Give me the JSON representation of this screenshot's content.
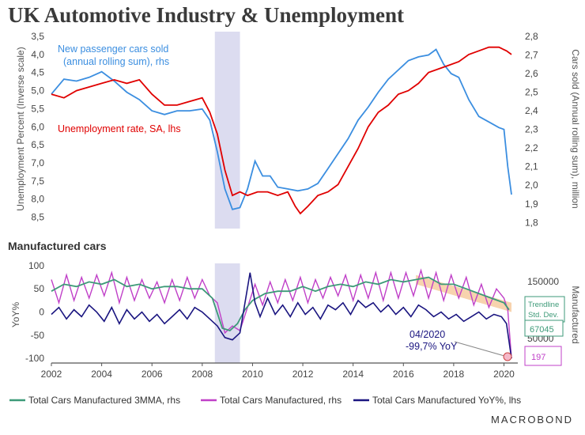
{
  "title": "UK Automotive Industry & Unemployment",
  "footer_brand": "MACROBOND",
  "colors": {
    "unemployment": "#e00000",
    "cars_sold": "#3b8ee0",
    "mma3": "#3d9a78",
    "manufactured": "#c040c8",
    "yoy": "#1a1580",
    "recession": "#dcdcf0",
    "trend_band": "#f5c89a"
  },
  "chart_data": [
    {
      "type": "line",
      "subtitle": "",
      "annotations": [
        "New passenger cars sold",
        "(annual rolling sum), rhs",
        "Unemployment rate, SA, lhs"
      ],
      "ylabel": "Unemployment Percent (Inverse scale)",
      "y2label": "Cars sold (Annual rolling sum), million",
      "ylim": [
        8.75,
        3.5
      ],
      "y2lim": [
        1.78,
        2.8
      ],
      "yticks": [
        "3,5",
        "4,0",
        "4,5",
        "5,0",
        "5,5",
        "6,0",
        "6,5",
        "7,0",
        "7,5",
        "8,0",
        "8,5"
      ],
      "y2ticks": [
        "1,8",
        "1,9",
        "2,0",
        "2,1",
        "2,2",
        "2,3",
        "2,4",
        "2,5",
        "2,6",
        "2,7",
        "2,8"
      ],
      "recession": [
        2008.5,
        2009.5
      ],
      "series": [
        {
          "name": "Unemployment rate, SA, lhs",
          "axis": "left",
          "x": [
            2002.0,
            2002.5,
            2003.0,
            2003.5,
            2004.0,
            2004.5,
            2005.0,
            2005.5,
            2006.0,
            2006.5,
            2007.0,
            2007.5,
            2008.0,
            2008.3,
            2008.6,
            2008.9,
            2009.2,
            2009.5,
            2009.8,
            2010.2,
            2010.6,
            2011.0,
            2011.4,
            2011.7,
            2011.9,
            2012.2,
            2012.6,
            2013.0,
            2013.4,
            2013.8,
            2014.2,
            2014.6,
            2015.0,
            2015.4,
            2015.8,
            2016.2,
            2016.6,
            2017.0,
            2017.4,
            2017.8,
            2018.2,
            2018.6,
            2019.0,
            2019.4,
            2019.8,
            2020.1,
            2020.3
          ],
          "y": [
            5.1,
            5.2,
            5.0,
            4.9,
            4.8,
            4.7,
            4.8,
            4.7,
            5.1,
            5.4,
            5.4,
            5.3,
            5.2,
            5.6,
            6.2,
            7.2,
            7.9,
            7.8,
            7.9,
            7.8,
            7.8,
            7.9,
            7.8,
            8.2,
            8.4,
            8.2,
            7.9,
            7.8,
            7.6,
            7.1,
            6.6,
            6.0,
            5.6,
            5.4,
            5.1,
            5.0,
            4.8,
            4.5,
            4.4,
            4.3,
            4.2,
            4.0,
            3.9,
            3.8,
            3.8,
            3.9,
            4.0
          ]
        },
        {
          "name": "New passenger cars sold (annual rolling sum), rhs",
          "axis": "right",
          "x": [
            2002.0,
            2002.5,
            2003.0,
            2003.5,
            2004.0,
            2004.5,
            2005.0,
            2005.5,
            2006.0,
            2006.5,
            2007.0,
            2007.5,
            2008.0,
            2008.3,
            2008.6,
            2008.9,
            2009.2,
            2009.5,
            2009.8,
            2010.1,
            2010.4,
            2010.7,
            2011.0,
            2011.4,
            2011.8,
            2012.2,
            2012.6,
            2013.0,
            2013.4,
            2013.8,
            2014.2,
            2014.6,
            2015.0,
            2015.4,
            2015.8,
            2016.2,
            2016.6,
            2017.0,
            2017.3,
            2017.6,
            2017.9,
            2018.2,
            2018.6,
            2019.0,
            2019.4,
            2019.8,
            2020.0,
            2020.15,
            2020.3
          ],
          "y": [
            2.49,
            2.57,
            2.56,
            2.58,
            2.61,
            2.56,
            2.5,
            2.46,
            2.4,
            2.38,
            2.4,
            2.4,
            2.41,
            2.35,
            2.18,
            1.98,
            1.87,
            1.88,
            1.98,
            2.13,
            2.05,
            2.05,
            1.99,
            1.98,
            1.97,
            1.98,
            2.01,
            2.09,
            2.17,
            2.25,
            2.35,
            2.42,
            2.5,
            2.57,
            2.62,
            2.67,
            2.69,
            2.7,
            2.73,
            2.65,
            2.6,
            2.58,
            2.46,
            2.37,
            2.34,
            2.31,
            2.3,
            2.1,
            1.95
          ]
        }
      ]
    },
    {
      "type": "line",
      "title": "Manufactured cars",
      "ylabel": "YoY%",
      "y2label": "Manufactured",
      "xticks": [
        "2002",
        "2004",
        "2006",
        "2008",
        "2010",
        "2012",
        "2014",
        "2016",
        "2018",
        "2020"
      ],
      "ylim": [
        -110,
        105
      ],
      "yticks": [
        "100",
        "50",
        "0",
        "-50",
        "-100"
      ],
      "y2ticks": [
        "150000",
        "100000",
        "50000"
      ],
      "recession": [
        2008.5,
        2009.5
      ],
      "annotations": [
        "04/2020",
        "-99,7% YoY"
      ],
      "value_labels": [
        "Trendline",
        "Std. Dev.",
        "67045",
        "197"
      ],
      "series": [
        {
          "name": "Total Cars Manufactured 3MMA, rhs",
          "x": [
            2002.0,
            2002.5,
            2003.0,
            2003.5,
            2004.0,
            2004.5,
            2005.0,
            2005.5,
            2006.0,
            2006.5,
            2007.0,
            2007.5,
            2008.0,
            2008.4,
            2008.8,
            2009.1,
            2009.4,
            2009.7,
            2010.0,
            2010.5,
            2011.0,
            2011.5,
            2012.0,
            2012.5,
            2013.0,
            2013.5,
            2014.0,
            2014.5,
            2015.0,
            2015.5,
            2016.0,
            2016.5,
            2017.0,
            2017.5,
            2018.0,
            2018.5,
            2019.0,
            2019.5,
            2020.0,
            2020.2
          ],
          "y": [
            45,
            60,
            55,
            65,
            60,
            70,
            55,
            60,
            50,
            55,
            55,
            50,
            50,
            30,
            -35,
            -40,
            -25,
            5,
            25,
            40,
            45,
            45,
            55,
            45,
            55,
            60,
            55,
            65,
            60,
            70,
            65,
            70,
            75,
            60,
            60,
            50,
            40,
            30,
            20,
            5
          ]
        },
        {
          "name": "Total Cars Manufactured, rhs",
          "x": [
            2002.0,
            2002.3,
            2002.6,
            2002.9,
            2003.2,
            2003.5,
            2003.8,
            2004.1,
            2004.4,
            2004.7,
            2005.0,
            2005.3,
            2005.6,
            2005.9,
            2006.2,
            2006.5,
            2006.8,
            2007.1,
            2007.4,
            2007.7,
            2008.0,
            2008.3,
            2008.6,
            2008.9,
            2009.2,
            2009.5,
            2009.8,
            2010.1,
            2010.4,
            2010.7,
            2011.0,
            2011.3,
            2011.6,
            2011.9,
            2012.2,
            2012.5,
            2012.8,
            2013.1,
            2013.4,
            2013.7,
            2014.0,
            2014.3,
            2014.6,
            2014.9,
            2015.2,
            2015.5,
            2015.8,
            2016.1,
            2016.4,
            2016.7,
            2017.0,
            2017.3,
            2017.6,
            2017.9,
            2018.2,
            2018.5,
            2018.8,
            2019.1,
            2019.4,
            2019.7,
            2020.0,
            2020.15,
            2020.3
          ],
          "y": [
            70,
            20,
            80,
            25,
            75,
            30,
            80,
            35,
            85,
            20,
            75,
            25,
            70,
            30,
            65,
            20,
            70,
            25,
            75,
            30,
            70,
            35,
            20,
            -45,
            -30,
            -40,
            10,
            60,
            15,
            65,
            20,
            70,
            25,
            75,
            20,
            70,
            30,
            75,
            35,
            80,
            25,
            80,
            30,
            85,
            25,
            85,
            30,
            85,
            35,
            90,
            30,
            85,
            25,
            80,
            30,
            75,
            15,
            60,
            10,
            50,
            30,
            5,
            -100
          ]
        },
        {
          "name": "Total Cars Manufactured YoY%, lhs",
          "x": [
            2002.0,
            2002.3,
            2002.6,
            2002.9,
            2003.2,
            2003.5,
            2003.8,
            2004.1,
            2004.4,
            2004.7,
            2005.0,
            2005.3,
            2005.6,
            2005.9,
            2006.2,
            2006.5,
            2006.8,
            2007.1,
            2007.4,
            2007.7,
            2008.0,
            2008.3,
            2008.6,
            2008.9,
            2009.2,
            2009.5,
            2009.7,
            2009.9,
            2010.1,
            2010.3,
            2010.6,
            2010.9,
            2011.2,
            2011.5,
            2011.8,
            2012.1,
            2012.4,
            2012.7,
            2013.0,
            2013.3,
            2013.6,
            2013.9,
            2014.2,
            2014.5,
            2014.8,
            2015.1,
            2015.4,
            2015.7,
            2016.0,
            2016.3,
            2016.6,
            2016.9,
            2017.2,
            2017.5,
            2017.8,
            2018.1,
            2018.4,
            2018.7,
            2019.0,
            2019.3,
            2019.6,
            2019.9,
            2020.1,
            2020.3
          ],
          "y": [
            -5,
            10,
            -15,
            5,
            -10,
            15,
            0,
            -20,
            10,
            -25,
            5,
            -15,
            0,
            -20,
            -5,
            -25,
            -10,
            5,
            -15,
            10,
            0,
            -15,
            -30,
            -55,
            -60,
            -45,
            20,
            85,
            20,
            -10,
            30,
            -5,
            15,
            -10,
            20,
            -5,
            10,
            -15,
            15,
            5,
            20,
            -5,
            25,
            10,
            20,
            0,
            15,
            -5,
            10,
            -10,
            15,
            5,
            -10,
            0,
            -15,
            -5,
            -20,
            -10,
            0,
            -15,
            -5,
            -10,
            -25,
            -100
          ]
        }
      ]
    }
  ]
}
